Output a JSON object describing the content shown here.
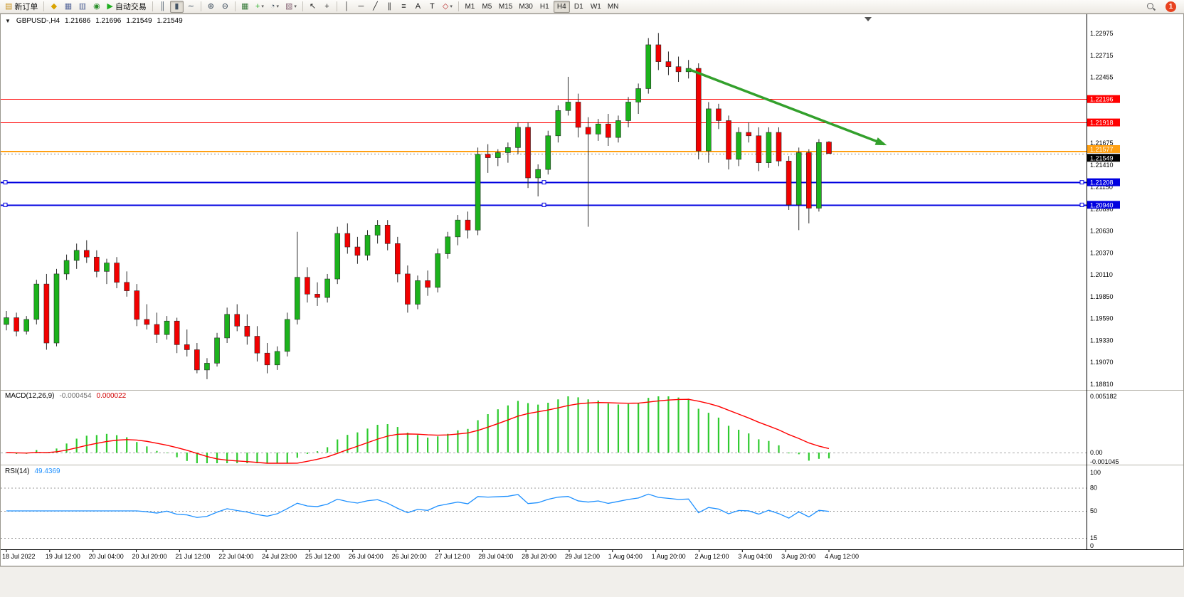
{
  "toolbar": {
    "notification_count": "1",
    "dropdown_glyph": "▾",
    "items": [
      {
        "kind": "btn",
        "name": "new-order-button",
        "icon": "new-order-icon",
        "glyph": "▤",
        "color": "#c89018",
        "label": "新订单"
      },
      {
        "kind": "sep"
      },
      {
        "kind": "btn",
        "name": "metaeditor-button",
        "icon": "metaeditor-icon",
        "glyph": "◆",
        "color": "#d9a300"
      },
      {
        "kind": "btn",
        "name": "new-chart-button",
        "icon": "new-chart-icon",
        "glyph": "▦",
        "color": "#556699"
      },
      {
        "kind": "btn",
        "name": "profiles-button",
        "icon": "profiles-icon",
        "glyph": "▥",
        "color": "#556699"
      },
      {
        "kind": "btn",
        "name": "refresh-button",
        "icon": "refresh-icon",
        "glyph": "◉",
        "color": "#2a8f2a"
      },
      {
        "kind": "btn",
        "name": "autotrading-button",
        "icon": "autotrading-play-icon",
        "glyph": "▶",
        "color": "#1fae1f",
        "label": "自动交易"
      },
      {
        "kind": "sep"
      },
      {
        "kind": "btn",
        "name": "bar-chart-button",
        "icon": "bar-chart-icon",
        "glyph": "║",
        "color": "#445566"
      },
      {
        "kind": "btn",
        "name": "candlestick-chart-button",
        "icon": "candlestick-icon",
        "glyph": "▮",
        "color": "#445566",
        "pressed": true
      },
      {
        "kind": "btn",
        "name": "line-chart-button",
        "icon": "line-chart-icon",
        "glyph": "∼",
        "color": "#445566"
      },
      {
        "kind": "sep"
      },
      {
        "kind": "btn",
        "name": "zoom-in-button",
        "icon": "zoom-in-icon",
        "glyph": "⊕",
        "color": "#334455"
      },
      {
        "kind": "btn",
        "name": "zoom-out-button",
        "icon": "zoom-out-icon",
        "glyph": "⊖",
        "color": "#334455"
      },
      {
        "kind": "sep"
      },
      {
        "kind": "btn",
        "name": "tile-windows-button",
        "icon": "tile-windows-icon",
        "glyph": "▦",
        "color": "#357a38"
      },
      {
        "kind": "btn",
        "name": "indicators-button",
        "icon": "indicators-icon",
        "glyph": "+",
        "color": "#1fae1f",
        "dropdown": true
      },
      {
        "kind": "btn",
        "name": "periods-button",
        "icon": "periods-icon",
        "glyph": "◔",
        "color": "#334455",
        "dropdown": true
      },
      {
        "kind": "btn",
        "name": "templates-button",
        "icon": "templates-icon",
        "glyph": "▧",
        "color": "#886677",
        "dropdown": true
      },
      {
        "kind": "sep"
      },
      {
        "kind": "btn",
        "name": "cursor-button",
        "icon": "cursor-icon",
        "glyph": "↖",
        "color": "#222222"
      },
      {
        "kind": "btn",
        "name": "crosshair-button",
        "icon": "crosshair-icon",
        "glyph": "+",
        "color": "#222222"
      },
      {
        "kind": "sep"
      },
      {
        "kind": "btn",
        "name": "vertical-line-button",
        "icon": "vertical-line-icon",
        "glyph": "│",
        "color": "#222222"
      },
      {
        "kind": "btn",
        "name": "horizontal-line-button",
        "icon": "horizontal-line-icon",
        "glyph": "─",
        "color": "#222222"
      },
      {
        "kind": "btn",
        "name": "trendline-button",
        "icon": "trendline-icon",
        "glyph": "╱",
        "color": "#222222"
      },
      {
        "kind": "btn",
        "name": "channel-button",
        "icon": "channel-icon",
        "glyph": "∥",
        "color": "#222222"
      },
      {
        "kind": "btn",
        "name": "fibonacci-button",
        "icon": "fibonacci-icon",
        "glyph": "≡",
        "color": "#222222"
      },
      {
        "kind": "btn",
        "name": "text-button",
        "icon": "text-icon",
        "glyph": "A",
        "color": "#222222"
      },
      {
        "kind": "btn",
        "name": "text-label-button",
        "icon": "text-label-icon",
        "glyph": "T",
        "color": "#222222"
      },
      {
        "kind": "btn",
        "name": "arrows-button",
        "icon": "arrows-icon",
        "glyph": "◇",
        "color": "#bb3333",
        "dropdown": true
      },
      {
        "kind": "sep"
      },
      {
        "kind": "tf",
        "name": "timeframe-m1-button",
        "label": "M1"
      },
      {
        "kind": "tf",
        "name": "timeframe-m5-button",
        "label": "M5"
      },
      {
        "kind": "tf",
        "name": "timeframe-m15-button",
        "label": "M15"
      },
      {
        "kind": "tf",
        "name": "timeframe-m30-button",
        "label": "M30"
      },
      {
        "kind": "tf",
        "name": "timeframe-h1-button",
        "label": "H1"
      },
      {
        "kind": "tf",
        "name": "timeframe-h4-button",
        "label": "H4",
        "pressed": true
      },
      {
        "kind": "tf",
        "name": "timeframe-d1-button",
        "label": "D1"
      },
      {
        "kind": "tf",
        "name": "timeframe-w1-button",
        "label": "W1"
      },
      {
        "kind": "tf",
        "name": "timeframe-mn-button",
        "label": "MN"
      }
    ]
  },
  "chart_data": {
    "type": "candlestick",
    "symbol_label": "GBPUSD-,H4",
    "one_click_glyph": "▼",
    "quote": {
      "open": "1.21686",
      "high": "1.21696",
      "low": "1.21549",
      "close": "1.21549"
    },
    "ylim": [
      1.18751,
      1.23186
    ],
    "current_price": 1.21549,
    "current_price_label": "1.21549",
    "price_ticks": [
      "1.22975",
      "1.22715",
      "1.22455",
      "1.21675",
      "1.21410",
      "1.21150",
      "1.20890",
      "1.20630",
      "1.20370",
      "1.20110",
      "1.19850",
      "1.19590",
      "1.19330",
      "1.19070",
      "1.18810"
    ],
    "time_ticks": [
      "18 Jul 2022",
      "19 Jul 12:00",
      "20 Jul 04:00",
      "20 Jul 20:00",
      "21 Jul 12:00",
      "22 Jul 04:00",
      "24 Jul 23:00",
      "25 Jul 12:00",
      "26 Jul 04:00",
      "26 Jul 20:00",
      "27 Jul 12:00",
      "28 Jul 04:00",
      "28 Jul 20:00",
      "29 Jul 12:00",
      "1 Aug 04:00",
      "1 Aug 20:00",
      "2 Aug 12:00",
      "3 Aug 04:00",
      "3 Aug 20:00",
      "4 Aug 12:00"
    ],
    "hlines": [
      {
        "price": 1.22196,
        "label": "1.22196",
        "color": "#FF0000",
        "width": 1
      },
      {
        "price": 1.21918,
        "label": "1.21918",
        "color": "#FF0000",
        "width": 1
      },
      {
        "price": 1.21577,
        "label": "1.21577",
        "color": "#FFA013",
        "width": 2,
        "label_dy": -3
      },
      {
        "price": 1.21208,
        "label": "1.21208",
        "color": "#0000E0",
        "width": 2,
        "selected": true
      },
      {
        "price": 1.2094,
        "label": "1.20940",
        "color": "#0000E0",
        "width": 2,
        "selected": true
      }
    ],
    "trend_arrow": {
      "x1_index": 68,
      "y1_price": 1.2255,
      "x2_index": 87.5,
      "y2_price": 1.2166
    },
    "colors": {
      "bull": "#1CB21C",
      "bear": "#F20000",
      "wick": "#2a2a2a",
      "macd_hist": "#2FCB2F",
      "macd_signal": "#FF0000",
      "rsi_line": "#1E90FF",
      "arrow": "#33A02C"
    },
    "candles": [
      [
        1.1952,
        1.1968,
        1.1945,
        1.196
      ],
      [
        1.196,
        1.1966,
        1.1938,
        1.1944
      ],
      [
        1.1944,
        1.1962,
        1.194,
        1.1958
      ],
      [
        1.1958,
        1.2005,
        1.1952,
        1.2
      ],
      [
        1.2,
        1.2012,
        1.1922,
        1.193
      ],
      [
        1.193,
        1.2018,
        1.1926,
        1.2012
      ],
      [
        1.2012,
        1.2035,
        1.2005,
        1.2028
      ],
      [
        1.2028,
        1.2048,
        1.2018,
        1.204
      ],
      [
        1.204,
        1.2052,
        1.2025,
        1.2032
      ],
      [
        1.2032,
        1.204,
        1.2008,
        1.2015
      ],
      [
        1.2015,
        1.203,
        1.2,
        1.2025
      ],
      [
        1.2025,
        1.2032,
        1.1995,
        1.2002
      ],
      [
        1.2002,
        1.2015,
        1.1985,
        1.1992
      ],
      [
        1.1992,
        1.2,
        1.195,
        1.1958
      ],
      [
        1.1958,
        1.1976,
        1.1946,
        1.1952
      ],
      [
        1.1952,
        1.1966,
        1.193,
        1.194
      ],
      [
        1.194,
        1.1962,
        1.1934,
        1.1956
      ],
      [
        1.1956,
        1.196,
        1.1918,
        1.1928
      ],
      [
        1.1928,
        1.1946,
        1.1914,
        1.1922
      ],
      [
        1.1922,
        1.193,
        1.1894,
        1.1898
      ],
      [
        1.1898,
        1.1912,
        1.1887,
        1.1906
      ],
      [
        1.1906,
        1.1942,
        1.1902,
        1.1936
      ],
      [
        1.1936,
        1.1972,
        1.193,
        1.1964
      ],
      [
        1.1964,
        1.1976,
        1.1944,
        1.195
      ],
      [
        1.195,
        1.1964,
        1.1928,
        1.1938
      ],
      [
        1.1938,
        1.195,
        1.1908,
        1.1918
      ],
      [
        1.1918,
        1.193,
        1.1894,
        1.1904
      ],
      [
        1.1904,
        1.1926,
        1.1898,
        1.192
      ],
      [
        1.192,
        1.1966,
        1.1914,
        1.1958
      ],
      [
        1.1958,
        1.2062,
        1.1952,
        1.2008
      ],
      [
        1.2008,
        1.202,
        1.1978,
        1.1988
      ],
      [
        1.1988,
        1.2002,
        1.1974,
        1.1984
      ],
      [
        1.1984,
        1.2012,
        1.1978,
        1.2006
      ],
      [
        1.2006,
        1.2068,
        1.2,
        1.206
      ],
      [
        1.206,
        1.2072,
        1.2036,
        1.2044
      ],
      [
        1.2044,
        1.2056,
        1.2024,
        1.2034
      ],
      [
        1.2034,
        1.2064,
        1.2028,
        1.2058
      ],
      [
        1.2058,
        1.2076,
        1.2048,
        1.207
      ],
      [
        1.207,
        1.2076,
        1.204,
        1.2048
      ],
      [
        1.2048,
        1.2056,
        1.2002,
        1.2012
      ],
      [
        1.2012,
        1.2022,
        1.1966,
        1.1976
      ],
      [
        1.1976,
        1.201,
        1.197,
        1.2004
      ],
      [
        1.2004,
        1.2016,
        1.1986,
        1.1996
      ],
      [
        1.1996,
        1.2042,
        1.199,
        1.2036
      ],
      [
        1.2036,
        1.2062,
        1.203,
        1.2056
      ],
      [
        1.2056,
        1.2082,
        1.2046,
        1.2076
      ],
      [
        1.2076,
        1.2086,
        1.2054,
        1.2064
      ],
      [
        1.2064,
        1.2162,
        1.2058,
        1.2154
      ],
      [
        1.2154,
        1.2166,
        1.2132,
        1.215
      ],
      [
        1.215,
        1.216,
        1.214,
        1.2156
      ],
      [
        1.2156,
        1.2168,
        1.2144,
        1.2162
      ],
      [
        1.2162,
        1.2192,
        1.2154,
        1.2186
      ],
      [
        1.2186,
        1.2192,
        1.2114,
        1.2126
      ],
      [
        1.2126,
        1.2142,
        1.2104,
        1.2136
      ],
      [
        1.2136,
        1.2182,
        1.213,
        1.2176
      ],
      [
        1.2176,
        1.2212,
        1.2168,
        1.2206
      ],
      [
        1.2206,
        1.2246,
        1.22,
        1.2216
      ],
      [
        1.2216,
        1.2226,
        1.2174,
        1.2186
      ],
      [
        1.2186,
        1.2198,
        1.2068,
        1.2178
      ],
      [
        1.2178,
        1.2196,
        1.217,
        1.219
      ],
      [
        1.219,
        1.2202,
        1.2164,
        1.2174
      ],
      [
        1.2174,
        1.22,
        1.2168,
        1.2194
      ],
      [
        1.2194,
        1.2222,
        1.2186,
        1.2216
      ],
      [
        1.2216,
        1.2238,
        1.2202,
        1.2232
      ],
      [
        1.2232,
        1.2292,
        1.2226,
        1.2284
      ],
      [
        1.2284,
        1.2298,
        1.2254,
        1.2264
      ],
      [
        1.2264,
        1.2276,
        1.2248,
        1.2258
      ],
      [
        1.2258,
        1.227,
        1.224,
        1.2252
      ],
      [
        1.2252,
        1.2266,
        1.2244,
        1.2256
      ],
      [
        1.2256,
        1.2262,
        1.2148,
        1.2158
      ],
      [
        1.2158,
        1.2216,
        1.2144,
        1.2208
      ],
      [
        1.2208,
        1.2214,
        1.2184,
        1.2194
      ],
      [
        1.2194,
        1.22,
        1.2136,
        1.2148
      ],
      [
        1.2148,
        1.2186,
        1.214,
        1.218
      ],
      [
        1.218,
        1.2192,
        1.2168,
        1.2176
      ],
      [
        1.2176,
        1.2186,
        1.2134,
        1.2144
      ],
      [
        1.2144,
        1.2186,
        1.2138,
        1.218
      ],
      [
        1.218,
        1.2186,
        1.214,
        1.2146
      ],
      [
        1.2146,
        1.2152,
        1.2088,
        1.2094
      ],
      [
        1.2094,
        1.2162,
        1.2064,
        1.2156
      ],
      [
        1.2156,
        1.216,
        1.2072,
        1.209
      ],
      [
        1.209,
        1.2172,
        1.2086,
        1.2168
      ],
      [
        1.21686,
        1.21696,
        1.21549,
        1.21549
      ]
    ],
    "indicators": {
      "macd": {
        "label": "MACD(12,26,9)",
        "value": "-0.000454",
        "signal_value": "0.000022",
        "params": {
          "fast": 12,
          "slow": 26,
          "signal": 9
        },
        "axis_labels": [
          "0.005182",
          "0.00",
          "-0.001045"
        ]
      },
      "rsi": {
        "label": "RSI(14)",
        "value": "49.4369",
        "period": 14,
        "levels": [
          80,
          50,
          15
        ],
        "axis_labels": [
          "100",
          "80",
          "50",
          "15",
          "0"
        ]
      }
    }
  }
}
